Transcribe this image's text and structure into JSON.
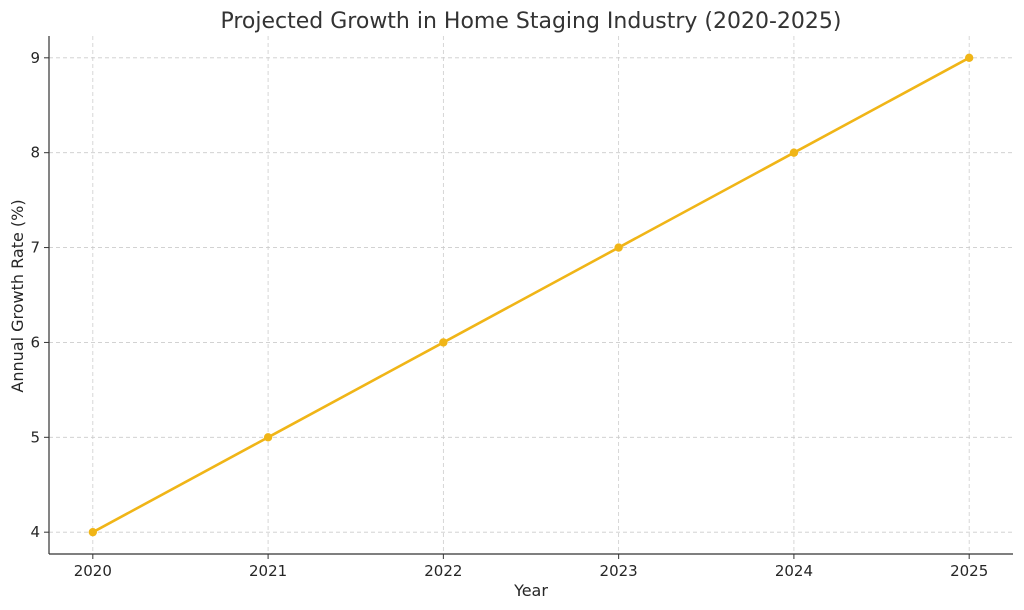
{
  "chart_data": {
    "type": "line",
    "title": "Projected Growth in Home Staging Industry (2020-2025)",
    "xlabel": "Year",
    "ylabel": "Annual Growth Rate (%)",
    "x": [
      2020,
      2021,
      2022,
      2023,
      2024,
      2025
    ],
    "series": [
      {
        "values": [
          4,
          5,
          6,
          7,
          8,
          9
        ],
        "color": "#F0B517",
        "marker": "circle"
      }
    ],
    "x_ticks": [
      "2020",
      "2021",
      "2022",
      "2023",
      "2024",
      "2025"
    ],
    "y_ticks": [
      4,
      5,
      6,
      7,
      8,
      9
    ],
    "ylim": [
      3.77,
      9.23
    ],
    "xlim": [
      2019.75,
      2025.25
    ],
    "grid": true,
    "legend": "none"
  }
}
